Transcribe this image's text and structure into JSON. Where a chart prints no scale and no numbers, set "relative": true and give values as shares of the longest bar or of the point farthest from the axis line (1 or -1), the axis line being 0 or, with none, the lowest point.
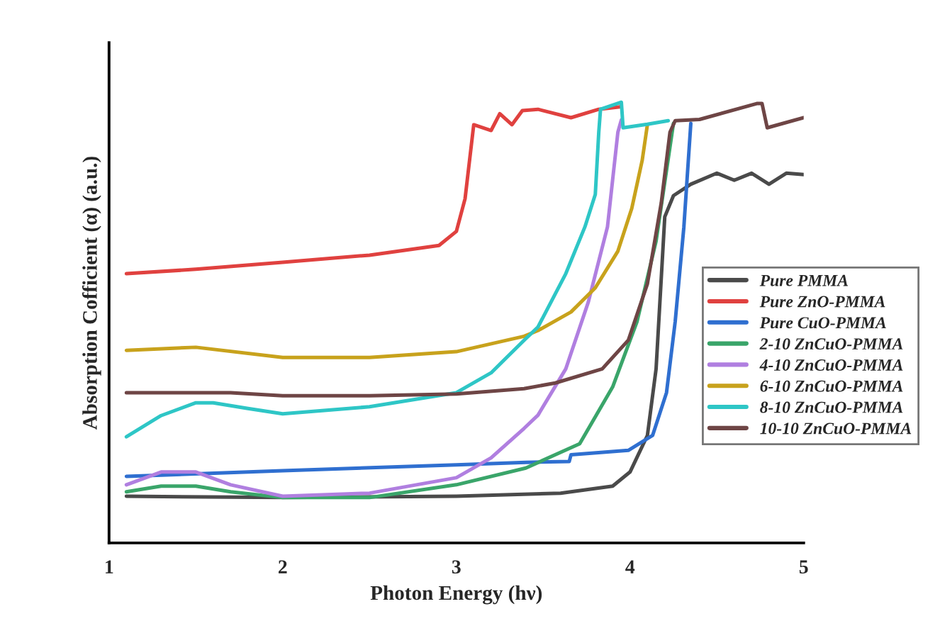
{
  "chart_data": {
    "type": "line",
    "relative": true,
    "xlabel": "Photon Energy (hν)",
    "ylabel": "Absorption Cofficient (α) (a.u.)",
    "xlim": [
      1,
      5
    ],
    "xticks": [
      1,
      2,
      3,
      4,
      5
    ],
    "grid": false,
    "legend": "right",
    "marker": "none",
    "line_style": "solid",
    "tick_labels": "x",
    "series": [
      {
        "name": "Pure PMMA",
        "color": "#4a4a4a",
        "x": [
          1.1,
          2.0,
          3.0,
          3.6,
          3.9,
          4.0,
          4.1,
          4.15,
          4.2,
          4.25,
          4.35,
          4.5,
          4.6,
          4.7,
          4.8,
          4.9,
          5.0
        ],
        "values": [
          0.106,
          0.103,
          0.106,
          0.113,
          0.129,
          0.161,
          0.244,
          0.395,
          0.74,
          0.788,
          0.814,
          0.839,
          0.823,
          0.839,
          0.814,
          0.839,
          0.836
        ]
      },
      {
        "name": "Pure ZnO-PMMA",
        "color": "#e0413f",
        "x": [
          1.1,
          1.5,
          2.0,
          2.5,
          2.9,
          3.0,
          3.05,
          3.1,
          3.2,
          3.25,
          3.32,
          3.38,
          3.47,
          3.66,
          3.82,
          3.95
        ],
        "values": [
          0.611,
          0.621,
          0.637,
          0.653,
          0.675,
          0.707,
          0.781,
          0.949,
          0.936,
          0.974,
          0.949,
          0.981,
          0.984,
          0.965,
          0.984,
          0.99
        ]
      },
      {
        "name": "Pure CuO-PMMA",
        "color": "#2f6fd0",
        "x": [
          1.1,
          2.0,
          3.0,
          3.4,
          3.65,
          3.66,
          3.99,
          4.13,
          4.21,
          4.26,
          4.31,
          4.35
        ],
        "values": [
          0.151,
          0.164,
          0.177,
          0.183,
          0.185,
          0.2,
          0.21,
          0.244,
          0.341,
          0.502,
          0.717,
          0.952
        ]
      },
      {
        "name": "2-10 ZnCuO-PMMA",
        "color": "#3aa56a",
        "x": [
          1.1,
          1.3,
          1.5,
          1.7,
          2.0,
          2.5,
          3.0,
          3.4,
          3.71,
          3.9,
          4.04,
          4.15,
          4.25
        ],
        "values": [
          0.116,
          0.129,
          0.129,
          0.116,
          0.103,
          0.103,
          0.132,
          0.17,
          0.225,
          0.354,
          0.502,
          0.685,
          0.952
        ]
      },
      {
        "name": "4-10 ZnCuO-PMMA",
        "color": "#b07fe0",
        "x": [
          1.1,
          1.3,
          1.5,
          1.7,
          2.0,
          2.5,
          3.0,
          3.2,
          3.39,
          3.47,
          3.63,
          3.76,
          3.87,
          3.93,
          3.95
        ],
        "values": [
          0.132,
          0.161,
          0.161,
          0.132,
          0.106,
          0.113,
          0.148,
          0.193,
          0.26,
          0.29,
          0.395,
          0.547,
          0.717,
          0.932,
          0.96
        ]
      },
      {
        "name": "6-10 ZnCuO-PMMA",
        "color": "#c8a21c",
        "x": [
          1.1,
          1.5,
          2.0,
          2.5,
          3.0,
          3.39,
          3.47,
          3.66,
          3.8,
          3.93,
          4.01,
          4.07,
          4.1
        ],
        "values": [
          0.437,
          0.444,
          0.421,
          0.421,
          0.434,
          0.469,
          0.482,
          0.524,
          0.579,
          0.662,
          0.759,
          0.868,
          0.949
        ]
      },
      {
        "name": "8-10 ZnCuO-PMMA",
        "color": "#2ec6c6",
        "x": [
          1.1,
          1.3,
          1.5,
          1.6,
          1.8,
          2.0,
          2.5,
          3.0,
          3.2,
          3.39,
          3.47,
          3.63,
          3.74,
          3.8,
          3.82,
          3.83,
          3.95,
          3.96,
          4.1,
          4.22
        ],
        "values": [
          0.241,
          0.289,
          0.318,
          0.318,
          0.305,
          0.293,
          0.309,
          0.341,
          0.386,
          0.46,
          0.49,
          0.611,
          0.717,
          0.791,
          0.932,
          0.984,
          1.0,
          0.942,
          0.95,
          0.958
        ]
      },
      {
        "name": "10-10 ZnCuO-PMMA",
        "color": "#6e4545",
        "x": [
          1.1,
          1.7,
          2.0,
          2.5,
          3.0,
          3.39,
          3.57,
          3.84,
          3.99,
          4.1,
          4.18,
          4.23,
          4.26,
          4.4,
          4.73,
          4.76,
          4.79,
          5.0
        ],
        "values": [
          0.341,
          0.341,
          0.334,
          0.334,
          0.338,
          0.35,
          0.363,
          0.395,
          0.46,
          0.588,
          0.772,
          0.932,
          0.958,
          0.961,
          0.997,
          0.997,
          0.942,
          0.965
        ]
      }
    ]
  }
}
